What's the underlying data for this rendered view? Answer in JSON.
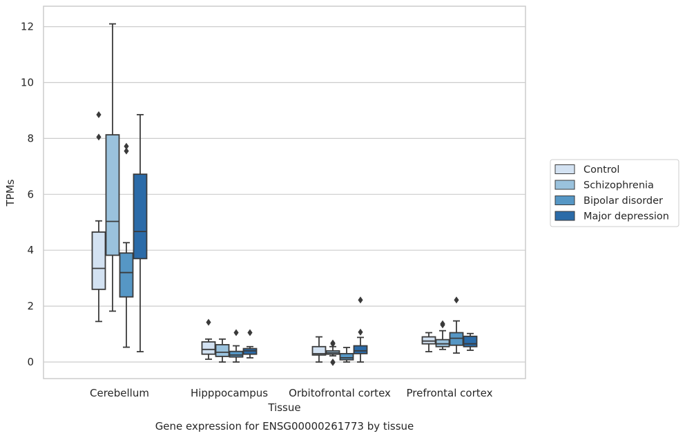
{
  "chart_data": {
    "type": "box",
    "title": "",
    "caption": "Gene expression for ENSG00000261773 by tissue",
    "xlabel": "Tissue",
    "ylabel": "TPMs",
    "ylim": [
      -0.6,
      12.7
    ],
    "yticks": [
      0,
      2,
      4,
      6,
      8,
      10,
      12
    ],
    "grid": "horizontal",
    "legend_position": "right",
    "categories": [
      "Cerebellum",
      "Hipppocampus",
      "Orbitofrontal cortex",
      "Prefrontal cortex"
    ],
    "series": [
      {
        "name": "Control",
        "color": "#d3e2f2",
        "boxes": [
          {
            "min": 1.45,
            "q1": 2.6,
            "median": 3.35,
            "q3": 4.65,
            "max": 5.05,
            "outliers": [
              8.85,
              8.05
            ]
          },
          {
            "min": 0.1,
            "q1": 0.28,
            "median": 0.45,
            "q3": 0.72,
            "max": 0.82,
            "outliers": [
              1.42
            ]
          },
          {
            "min": 0.0,
            "q1": 0.25,
            "median": 0.3,
            "q3": 0.55,
            "max": 0.9,
            "outliers": []
          },
          {
            "min": 0.37,
            "q1": 0.65,
            "median": 0.75,
            "q3": 0.9,
            "max": 1.05,
            "outliers": []
          }
        ]
      },
      {
        "name": "Schizophrenia",
        "color": "#9ac2dd",
        "boxes": [
          {
            "min": 1.82,
            "q1": 3.82,
            "median": 5.03,
            "q3": 8.13,
            "max": 12.1,
            "outliers": []
          },
          {
            "min": 0.0,
            "q1": 0.2,
            "median": 0.35,
            "q3": 0.62,
            "max": 0.82,
            "outliers": []
          },
          {
            "min": 0.22,
            "q1": 0.28,
            "median": 0.33,
            "q3": 0.4,
            "max": 0.55,
            "outliers": [
              0.68,
              0.65,
              0.0,
              -0.02
            ]
          },
          {
            "min": 0.45,
            "q1": 0.55,
            "median": 0.65,
            "q3": 0.8,
            "max": 1.12,
            "outliers": [
              1.37,
              1.33
            ]
          }
        ]
      },
      {
        "name": "Bipolar disorder",
        "color": "#5697c5",
        "boxes": [
          {
            "min": 0.53,
            "q1": 2.33,
            "median": 3.2,
            "q3": 3.9,
            "max": 4.27,
            "outliers": [
              7.72,
              7.55
            ]
          },
          {
            "min": 0.0,
            "q1": 0.18,
            "median": 0.25,
            "q3": 0.38,
            "max": 0.58,
            "outliers": [
              1.05
            ]
          },
          {
            "min": 0.0,
            "q1": 0.08,
            "median": 0.15,
            "q3": 0.3,
            "max": 0.52,
            "outliers": []
          },
          {
            "min": 0.32,
            "q1": 0.6,
            "median": 0.85,
            "q3": 1.05,
            "max": 1.47,
            "outliers": [
              2.22
            ]
          }
        ]
      },
      {
        "name": "Major depression",
        "color": "#2b6ba8",
        "boxes": [
          {
            "min": 0.37,
            "q1": 3.7,
            "median": 4.67,
            "q3": 6.72,
            "max": 8.85,
            "outliers": []
          },
          {
            "min": 0.15,
            "q1": 0.28,
            "median": 0.4,
            "q3": 0.48,
            "max": 0.55,
            "outliers": [
              1.05
            ]
          },
          {
            "min": 0.0,
            "q1": 0.3,
            "median": 0.4,
            "q3": 0.58,
            "max": 0.88,
            "outliers": [
              2.22,
              1.07
            ]
          },
          {
            "min": 0.42,
            "q1": 0.55,
            "median": 0.65,
            "q3": 0.92,
            "max": 1.02,
            "outliers": []
          }
        ]
      }
    ]
  }
}
